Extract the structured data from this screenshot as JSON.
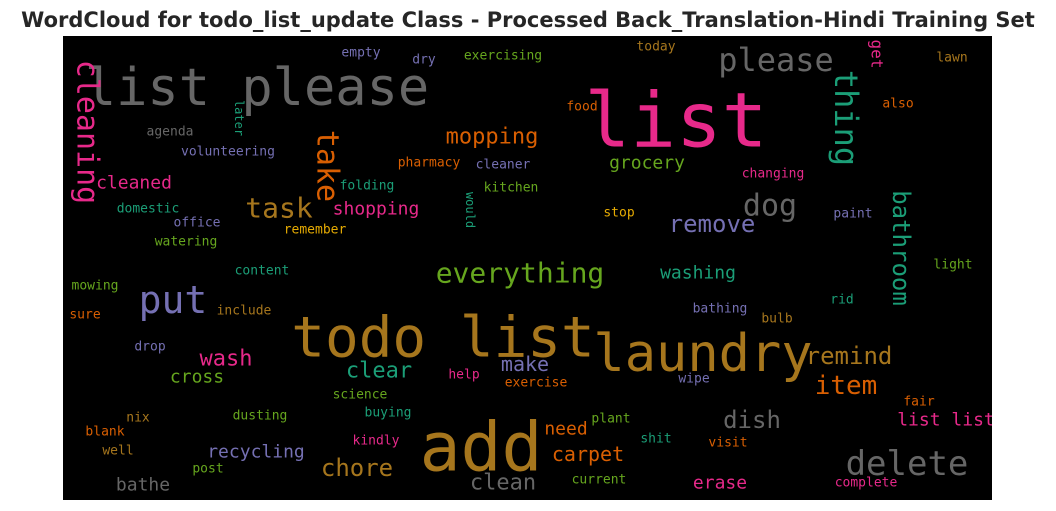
{
  "title": "WordCloud for todo_list_update Class - Processed Back_Translation-Hindi Training Set",
  "chart_data": {
    "type": "wordcloud",
    "title": "WordCloud for todo_list_update Class - Processed Back_Translation-Hindi Training Set",
    "background_color": "#000000",
    "words": [
      {
        "text": "list",
        "weight": 1.0,
        "color": "#e7298a"
      },
      {
        "text": "list please",
        "weight": 0.74,
        "color": "#666666"
      },
      {
        "text": "todo list",
        "weight": 0.86,
        "color": "#a6761d"
      },
      {
        "text": "add",
        "weight": 1.0,
        "color": "#a6761d"
      },
      {
        "text": "laundry",
        "weight": 0.74,
        "color": "#a6761d"
      },
      {
        "text": "please",
        "weight": 0.48,
        "color": "#666666"
      },
      {
        "text": "put",
        "weight": 0.58,
        "color": "#7570b3"
      },
      {
        "text": "delete",
        "weight": 0.52,
        "color": "#666666"
      },
      {
        "text": "everything",
        "weight": 0.46,
        "color": "#66a61e"
      },
      {
        "text": "thing",
        "weight": 0.44,
        "color": "#1b9e77"
      },
      {
        "text": "cleaning",
        "weight": 0.44,
        "color": "#e7298a"
      },
      {
        "text": "take",
        "weight": 0.42,
        "color": "#d95f02"
      },
      {
        "text": "bathroom",
        "weight": 0.4,
        "color": "#1b9e77"
      },
      {
        "text": "task",
        "weight": 0.42,
        "color": "#a6761d"
      },
      {
        "text": "dog",
        "weight": 0.44,
        "color": "#666666"
      },
      {
        "text": "remind",
        "weight": 0.4,
        "color": "#a6761d"
      },
      {
        "text": "item",
        "weight": 0.4,
        "color": "#d95f02"
      },
      {
        "text": "chore",
        "weight": 0.4,
        "color": "#a6761d"
      },
      {
        "text": "remove",
        "weight": 0.38,
        "color": "#7570b3"
      },
      {
        "text": "mopping",
        "weight": 0.38,
        "color": "#d95f02"
      },
      {
        "text": "dish",
        "weight": 0.38,
        "color": "#666666"
      },
      {
        "text": "wash",
        "weight": 0.36,
        "color": "#e7298a"
      },
      {
        "text": "clear",
        "weight": 0.36,
        "color": "#1b9e77"
      },
      {
        "text": "make",
        "weight": 0.34,
        "color": "#7570b3"
      },
      {
        "text": "clean",
        "weight": 0.34,
        "color": "#666666"
      },
      {
        "text": "list list",
        "weight": 0.32,
        "color": "#e7298a"
      },
      {
        "text": "carpet",
        "weight": 0.32,
        "color": "#d95f02"
      },
      {
        "text": "recycling",
        "weight": 0.3,
        "color": "#7570b3"
      },
      {
        "text": "washing",
        "weight": 0.3,
        "color": "#1b9e77"
      },
      {
        "text": "grocery",
        "weight": 0.3,
        "color": "#66a61e"
      },
      {
        "text": "cleaned",
        "weight": 0.28,
        "color": "#e7298a"
      },
      {
        "text": "shopping",
        "weight": 0.28,
        "color": "#e7298a"
      },
      {
        "text": "cross",
        "weight": 0.28,
        "color": "#66a61e"
      },
      {
        "text": "bathe",
        "weight": 0.28,
        "color": "#666666"
      },
      {
        "text": "erase",
        "weight": 0.28,
        "color": "#e7298a"
      },
      {
        "text": "need",
        "weight": 0.28,
        "color": "#d95f02"
      },
      {
        "text": "get",
        "weight": 0.24,
        "color": "#e7298a"
      },
      {
        "text": "empty",
        "weight": 0.2,
        "color": "#7570b3"
      },
      {
        "text": "dry",
        "weight": 0.2,
        "color": "#7570b3"
      },
      {
        "text": "exercising",
        "weight": 0.2,
        "color": "#66a61e"
      },
      {
        "text": "today",
        "weight": 0.2,
        "color": "#a6761d"
      },
      {
        "text": "lawn",
        "weight": 0.2,
        "color": "#a6761d"
      },
      {
        "text": "food",
        "weight": 0.2,
        "color": "#d95f02"
      },
      {
        "text": "also",
        "weight": 0.2,
        "color": "#d95f02"
      },
      {
        "text": "later",
        "weight": 0.18,
        "color": "#1b9e77"
      },
      {
        "text": "agenda",
        "weight": 0.2,
        "color": "#666666"
      },
      {
        "text": "volunteering",
        "weight": 0.2,
        "color": "#7570b3"
      },
      {
        "text": "pharmacy",
        "weight": 0.2,
        "color": "#d95f02"
      },
      {
        "text": "cleaner",
        "weight": 0.2,
        "color": "#7570b3"
      },
      {
        "text": "changing",
        "weight": 0.2,
        "color": "#e7298a"
      },
      {
        "text": "folding",
        "weight": 0.2,
        "color": "#1b9e77"
      },
      {
        "text": "kitchen",
        "weight": 0.2,
        "color": "#66a61e"
      },
      {
        "text": "would",
        "weight": 0.18,
        "color": "#1b9e77"
      },
      {
        "text": "domestic",
        "weight": 0.2,
        "color": "#1b9e77"
      },
      {
        "text": "stop",
        "weight": 0.2,
        "color": "#e6ab02"
      },
      {
        "text": "paint",
        "weight": 0.2,
        "color": "#7570b3"
      },
      {
        "text": "office",
        "weight": 0.2,
        "color": "#7570b3"
      },
      {
        "text": "remember",
        "weight": 0.2,
        "color": "#e6ab02"
      },
      {
        "text": "watering",
        "weight": 0.2,
        "color": "#66a61e"
      },
      {
        "text": "content",
        "weight": 0.2,
        "color": "#1b9e77"
      },
      {
        "text": "light",
        "weight": 0.2,
        "color": "#66a61e"
      },
      {
        "text": "mowing",
        "weight": 0.2,
        "color": "#66a61e"
      },
      {
        "text": "include",
        "weight": 0.2,
        "color": "#a6761d"
      },
      {
        "text": "bathing",
        "weight": 0.2,
        "color": "#7570b3"
      },
      {
        "text": "sure",
        "weight": 0.2,
        "color": "#d95f02"
      },
      {
        "text": "rid",
        "weight": 0.2,
        "color": "#1b9e77"
      },
      {
        "text": "bulb",
        "weight": 0.2,
        "color": "#a6761d"
      },
      {
        "text": "drop",
        "weight": 0.2,
        "color": "#7570b3"
      },
      {
        "text": "help",
        "weight": 0.2,
        "color": "#e7298a"
      },
      {
        "text": "exercise",
        "weight": 0.2,
        "color": "#d95f02"
      },
      {
        "text": "wipe",
        "weight": 0.2,
        "color": "#7570b3"
      },
      {
        "text": "science",
        "weight": 0.2,
        "color": "#66a61e"
      },
      {
        "text": "fair",
        "weight": 0.2,
        "color": "#d95f02"
      },
      {
        "text": "nix",
        "weight": 0.2,
        "color": "#a6761d"
      },
      {
        "text": "dusting",
        "weight": 0.2,
        "color": "#66a61e"
      },
      {
        "text": "buying",
        "weight": 0.2,
        "color": "#1b9e77"
      },
      {
        "text": "plant",
        "weight": 0.2,
        "color": "#66a61e"
      },
      {
        "text": "blank",
        "weight": 0.2,
        "color": "#d95f02"
      },
      {
        "text": "kindly",
        "weight": 0.2,
        "color": "#e7298a"
      },
      {
        "text": "shit",
        "weight": 0.2,
        "color": "#1b9e77"
      },
      {
        "text": "visit",
        "weight": 0.2,
        "color": "#d95f02"
      },
      {
        "text": "well",
        "weight": 0.2,
        "color": "#a6761d"
      },
      {
        "text": "post",
        "weight": 0.2,
        "color": "#66a61e"
      },
      {
        "text": "current",
        "weight": 0.2,
        "color": "#66a61e"
      },
      {
        "text": "complete",
        "weight": 0.2,
        "color": "#e7298a"
      }
    ]
  }
}
